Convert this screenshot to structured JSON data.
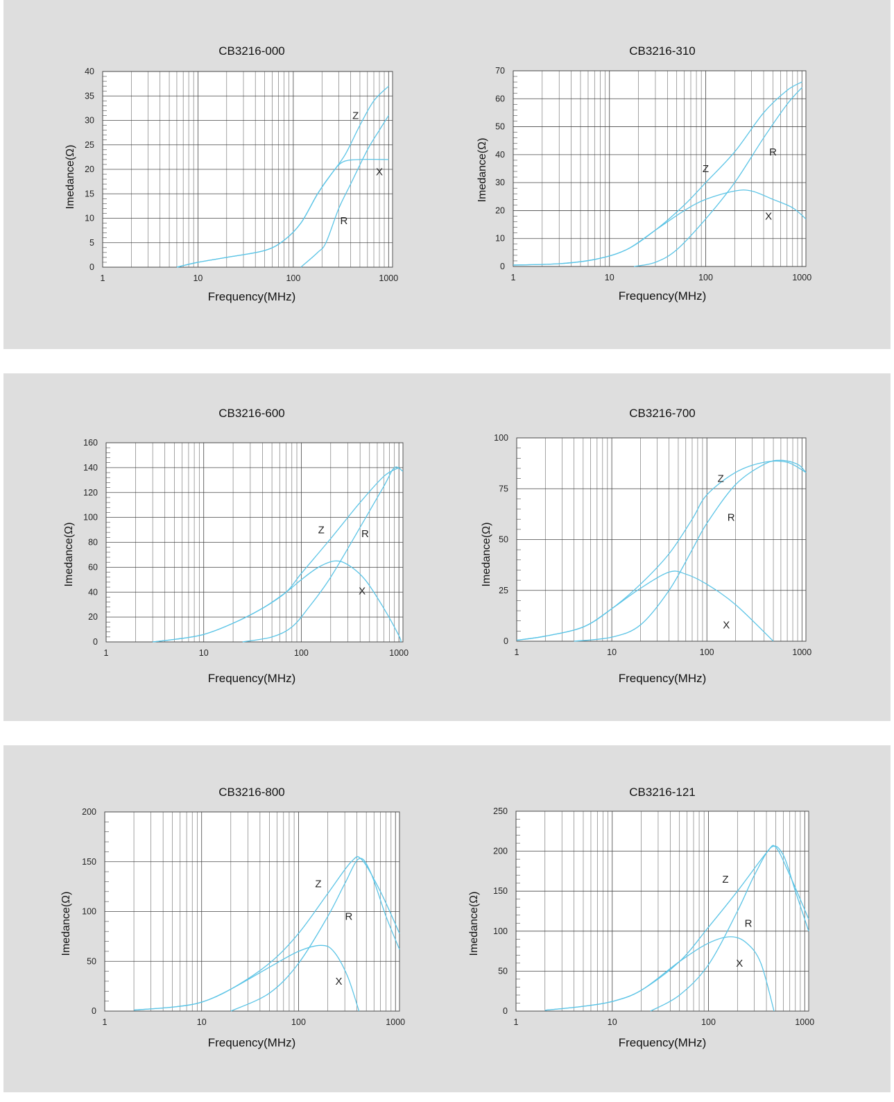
{
  "colors": {
    "panel_bg": "#dedede",
    "curve": "#5bc4e6",
    "grid": "#444444"
  },
  "chart_data": [
    {
      "type": "line",
      "id": "c0",
      "title": "CB3216-000",
      "xlabel": "Frequency(MHz)",
      "ylabel": "Imedance(Ω)",
      "xscale": "log",
      "xlim": [
        1,
        1100
      ],
      "ylim": [
        0,
        40
      ],
      "xticks": [
        1,
        10,
        100,
        1000
      ],
      "xtick_labels": [
        "1",
        "10",
        "100",
        "1000"
      ],
      "yticks": [
        0,
        5,
        10,
        15,
        20,
        25,
        30,
        35,
        40
      ],
      "ytick_labels": [
        "0",
        "5",
        "10",
        "15",
        "20",
        "25",
        "30",
        "35",
        "40"
      ],
      "series": [
        {
          "name": "Z",
          "points": [
            [
              6,
              0
            ],
            [
              10,
              1
            ],
            [
              20,
              2
            ],
            [
              50,
              3.4
            ],
            [
              80,
              5.5
            ],
            [
              120,
              9
            ],
            [
              180,
              15
            ],
            [
              250,
              19
            ],
            [
              350,
              23
            ],
            [
              500,
              29
            ],
            [
              700,
              34
            ],
            [
              1000,
              37
            ]
          ]
        },
        {
          "name": "X",
          "points": [
            [
              6,
              0
            ],
            [
              10,
              1
            ],
            [
              20,
              2
            ],
            [
              50,
              3.4
            ],
            [
              80,
              5.5
            ],
            [
              120,
              9
            ],
            [
              180,
              15
            ],
            [
              250,
              19
            ],
            [
              330,
              21.5
            ],
            [
              500,
              22
            ],
            [
              1000,
              22
            ]
          ]
        },
        {
          "name": "R",
          "points": [
            [
              120,
              0
            ],
            [
              180,
              3
            ],
            [
              220,
              5
            ],
            [
              300,
              12
            ],
            [
              400,
              17
            ],
            [
              600,
              24
            ],
            [
              800,
              28
            ],
            [
              1000,
              31
            ]
          ]
        }
      ],
      "annotations": [
        {
          "text": "Z",
          "x": 450,
          "y": 31
        },
        {
          "text": "X",
          "x": 800,
          "y": 19.5
        },
        {
          "text": "R",
          "x": 340,
          "y": 9.5
        }
      ]
    },
    {
      "type": "line",
      "id": "c1",
      "title": "CB3216-310",
      "xlabel": "Frequency(MHz)",
      "ylabel": "Imedance(Ω)",
      "xscale": "log",
      "xlim": [
        1,
        1100
      ],
      "ylim": [
        0,
        70
      ],
      "xticks": [
        1,
        10,
        100,
        1000
      ],
      "xtick_labels": [
        "1",
        "10",
        "100",
        "1000"
      ],
      "yticks": [
        0,
        10,
        20,
        30,
        40,
        50,
        60,
        70
      ],
      "ytick_labels": [
        "0",
        "10",
        "20",
        "30",
        "40",
        "50",
        "60",
        "70"
      ],
      "series": [
        {
          "name": "Z",
          "points": [
            [
              1,
              0.5
            ],
            [
              3,
              1
            ],
            [
              7,
              2.5
            ],
            [
              15,
              6
            ],
            [
              30,
              13
            ],
            [
              60,
              22
            ],
            [
              100,
              30
            ],
            [
              200,
              41
            ],
            [
              400,
              55
            ],
            [
              700,
              63
            ],
            [
              1000,
              66
            ]
          ]
        },
        {
          "name": "X",
          "points": [
            [
              1,
              0.5
            ],
            [
              3,
              1
            ],
            [
              7,
              2.5
            ],
            [
              15,
              6
            ],
            [
              30,
              13
            ],
            [
              60,
              20
            ],
            [
              100,
              24
            ],
            [
              200,
              27
            ],
            [
              300,
              27
            ],
            [
              500,
              24
            ],
            [
              800,
              21
            ],
            [
              1100,
              17
            ]
          ]
        },
        {
          "name": "R",
          "points": [
            [
              18,
              0
            ],
            [
              30,
              1.5
            ],
            [
              50,
              6
            ],
            [
              100,
              17
            ],
            [
              200,
              30
            ],
            [
              400,
              46
            ],
            [
              700,
              58
            ],
            [
              1000,
              64
            ]
          ]
        }
      ],
      "annotations": [
        {
          "text": "Z",
          "x": 100,
          "y": 35
        },
        {
          "text": "R",
          "x": 500,
          "y": 41
        },
        {
          "text": "X",
          "x": 450,
          "y": 18
        }
      ]
    },
    {
      "type": "line",
      "id": "c2",
      "title": "CB3216-600",
      "xlabel": "Frequency(MHz)",
      "ylabel": "Imedance(Ω)",
      "xscale": "log",
      "xlim": [
        1,
        1100
      ],
      "ylim": [
        0,
        160
      ],
      "xticks": [
        1,
        10,
        100,
        1000
      ],
      "xtick_labels": [
        "1",
        "10",
        "100",
        "1000"
      ],
      "yticks": [
        0,
        20,
        40,
        60,
        80,
        100,
        120,
        140,
        160
      ],
      "ytick_labels": [
        "0",
        "20",
        "40",
        "60",
        "80",
        "100",
        "120",
        "140",
        "160"
      ],
      "series": [
        {
          "name": "Z",
          "points": [
            [
              3,
              0
            ],
            [
              5,
              2
            ],
            [
              10,
              6
            ],
            [
              20,
              15
            ],
            [
              40,
              27
            ],
            [
              70,
              40
            ],
            [
              100,
              55
            ],
            [
              200,
              83
            ],
            [
              400,
              112
            ],
            [
              700,
              133
            ],
            [
              1000,
              140
            ]
          ]
        },
        {
          "name": "X",
          "points": [
            [
              3,
              0
            ],
            [
              5,
              2
            ],
            [
              10,
              6
            ],
            [
              20,
              15
            ],
            [
              40,
              27
            ],
            [
              70,
              40
            ],
            [
              100,
              50
            ],
            [
              150,
              60
            ],
            [
              220,
              65
            ],
            [
              300,
              62
            ],
            [
              450,
              50
            ],
            [
              700,
              27
            ],
            [
              1000,
              5
            ],
            [
              1050,
              0
            ]
          ]
        },
        {
          "name": "R",
          "points": [
            [
              25,
              0
            ],
            [
              50,
              4
            ],
            [
              80,
              12
            ],
            [
              120,
              28
            ],
            [
              200,
              52
            ],
            [
              400,
              92
            ],
            [
              700,
              125
            ],
            [
              900,
              140
            ],
            [
              1100,
              137
            ]
          ]
        }
      ],
      "annotations": [
        {
          "text": "Z",
          "x": 160,
          "y": 90
        },
        {
          "text": "R",
          "x": 450,
          "y": 87
        },
        {
          "text": "X",
          "x": 420,
          "y": 41
        }
      ]
    },
    {
      "type": "line",
      "id": "c3",
      "title": "CB3216-700",
      "xlabel": "Frequency(MHz)",
      "ylabel": "Imedance(Ω)",
      "xscale": "log",
      "xlim": [
        1,
        1100
      ],
      "ylim": [
        0,
        100
      ],
      "xticks": [
        1,
        10,
        100,
        1000
      ],
      "xtick_labels": [
        "1",
        "10",
        "100",
        "1000"
      ],
      "yticks": [
        0,
        25,
        50,
        75,
        100
      ],
      "ytick_labels": [
        "0",
        "25",
        "50",
        "75",
        "100"
      ],
      "series": [
        {
          "name": "Z",
          "points": [
            [
              1,
              0.5
            ],
            [
              2,
              2.5
            ],
            [
              5,
              7
            ],
            [
              10,
              16
            ],
            [
              20,
              28
            ],
            [
              40,
              43
            ],
            [
              70,
              60
            ],
            [
              100,
              72
            ],
            [
              200,
              83
            ],
            [
              400,
              88
            ],
            [
              700,
              88
            ],
            [
              1100,
              83
            ]
          ]
        },
        {
          "name": "X",
          "points": [
            [
              1,
              0.5
            ],
            [
              2,
              2.5
            ],
            [
              5,
              7
            ],
            [
              10,
              16
            ],
            [
              20,
              26
            ],
            [
              40,
              34
            ],
            [
              60,
              33
            ],
            [
              100,
              28
            ],
            [
              200,
              18
            ],
            [
              500,
              0
            ]
          ]
        },
        {
          "name": "R",
          "points": [
            [
              4,
              0
            ],
            [
              10,
              2
            ],
            [
              20,
              8
            ],
            [
              40,
              25
            ],
            [
              70,
              45
            ],
            [
              100,
              58
            ],
            [
              200,
              77
            ],
            [
              400,
              87
            ],
            [
              600,
              89
            ],
            [
              900,
              87
            ],
            [
              1100,
              83
            ]
          ]
        }
      ],
      "annotations": [
        {
          "text": "Z",
          "x": 140,
          "y": 80
        },
        {
          "text": "R",
          "x": 180,
          "y": 61
        },
        {
          "text": "X",
          "x": 160,
          "y": 8
        }
      ]
    },
    {
      "type": "line",
      "id": "c4",
      "title": "CB3216-800",
      "xlabel": "Frequency(MHz)",
      "ylabel": "Imedance(Ω)",
      "xscale": "log",
      "xlim": [
        1,
        1100
      ],
      "ylim": [
        0,
        200
      ],
      "xticks": [
        1,
        10,
        100,
        1000
      ],
      "xtick_labels": [
        "1",
        "10",
        "100",
        "1000"
      ],
      "yticks": [
        0,
        50,
        100,
        150,
        200
      ],
      "ytick_labels": [
        "0",
        "50",
        "100",
        "150",
        "200"
      ],
      "series": [
        {
          "name": "Z",
          "points": [
            [
              2,
              1
            ],
            [
              5,
              4
            ],
            [
              10,
              9
            ],
            [
              20,
              22
            ],
            [
              50,
              48
            ],
            [
              100,
              78
            ],
            [
              200,
              118
            ],
            [
              350,
              150
            ],
            [
              450,
              152
            ],
            [
              700,
              120
            ],
            [
              1100,
              78
            ]
          ]
        },
        {
          "name": "X",
          "points": [
            [
              2,
              1
            ],
            [
              5,
              4
            ],
            [
              10,
              9
            ],
            [
              20,
              22
            ],
            [
              50,
              44
            ],
            [
              100,
              60
            ],
            [
              170,
              66
            ],
            [
              230,
              60
            ],
            [
              320,
              35
            ],
            [
              420,
              0
            ]
          ]
        },
        {
          "name": "R",
          "points": [
            [
              20,
              0
            ],
            [
              50,
              18
            ],
            [
              100,
              48
            ],
            [
              200,
              95
            ],
            [
              300,
              128
            ],
            [
              420,
              153
            ],
            [
              550,
              140
            ],
            [
              800,
              95
            ],
            [
              1100,
              62
            ]
          ]
        }
      ],
      "annotations": [
        {
          "text": "Z",
          "x": 160,
          "y": 128
        },
        {
          "text": "R",
          "x": 330,
          "y": 95
        },
        {
          "text": "X",
          "x": 260,
          "y": 30
        }
      ]
    },
    {
      "type": "line",
      "id": "c5",
      "title": "CB3216-121",
      "xlabel": "Frequency(MHz)",
      "ylabel": "Imedance(Ω)",
      "xscale": "log",
      "xlim": [
        1,
        1100
      ],
      "ylim": [
        0,
        250
      ],
      "xticks": [
        1,
        10,
        100,
        1000
      ],
      "xtick_labels": [
        "1",
        "10",
        "100",
        "1000"
      ],
      "yticks": [
        0,
        50,
        100,
        150,
        200,
        250
      ],
      "ytick_labels": [
        "0",
        "50",
        "100",
        "150",
        "200",
        "250"
      ],
      "series": [
        {
          "name": "Z",
          "points": [
            [
              2,
              1
            ],
            [
              5,
              6
            ],
            [
              10,
              12
            ],
            [
              20,
              26
            ],
            [
              50,
              62
            ],
            [
              100,
              105
            ],
            [
              200,
              150
            ],
            [
              400,
              198
            ],
            [
              500,
              205
            ],
            [
              700,
              170
            ],
            [
              1100,
              115
            ]
          ]
        },
        {
          "name": "X",
          "points": [
            [
              2,
              1
            ],
            [
              5,
              6
            ],
            [
              10,
              12
            ],
            [
              20,
              26
            ],
            [
              50,
              62
            ],
            [
              100,
              85
            ],
            [
              170,
              93
            ],
            [
              250,
              85
            ],
            [
              350,
              60
            ],
            [
              480,
              0
            ]
          ]
        },
        {
          "name": "R",
          "points": [
            [
              25,
              0
            ],
            [
              50,
              20
            ],
            [
              100,
              58
            ],
            [
              200,
              125
            ],
            [
              300,
              170
            ],
            [
              450,
              205
            ],
            [
              600,
              195
            ],
            [
              800,
              150
            ],
            [
              1100,
              100
            ]
          ]
        }
      ],
      "annotations": [
        {
          "text": "Z",
          "x": 150,
          "y": 165
        },
        {
          "text": "R",
          "x": 260,
          "y": 110
        },
        {
          "text": "X",
          "x": 210,
          "y": 60
        }
      ]
    }
  ]
}
